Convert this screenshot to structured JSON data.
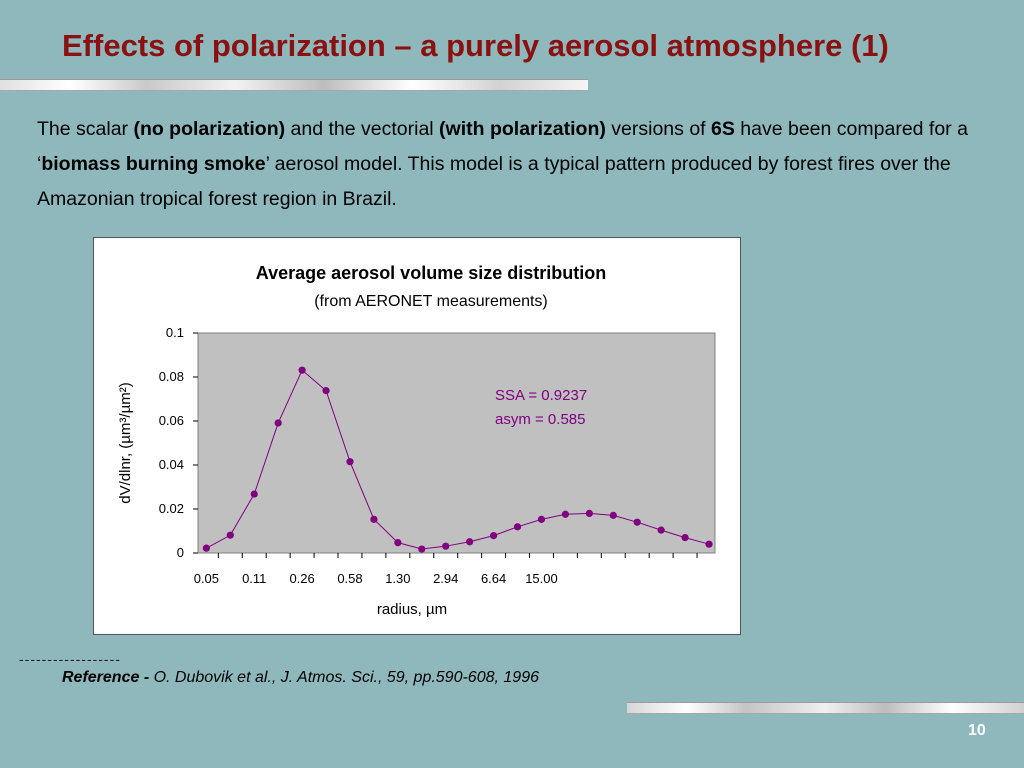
{
  "slide": {
    "title": "Effects of polarization – a purely aerosol atmosphere (1)",
    "page_number": "10"
  },
  "intro": {
    "t1": "The scalar ",
    "b1": "(no polarization)",
    "t2": " and the vectorial ",
    "b2": "(with polarization)",
    "t3": " versions of ",
    "b3": "6S",
    "t4": " have been compared for a ‘",
    "b4": "biomass burning smoke",
    "t5": "’ aerosol model. This model is a typical pattern produced by forest fires over the Amazonian tropical forest region in Brazil."
  },
  "reference": {
    "dashes": "------------------",
    "label": "Reference - ",
    "text": "O. Dubovik et al., J. Atmos. Sci., 59, pp.590-608, 1996"
  },
  "chart_data": {
    "type": "line",
    "title": "Average aerosol volume size distribution",
    "subtitle": "(from AERONET measurements)",
    "xlabel": "radius, µm",
    "ylabel": "dV/dlnr, (µm³/µm²)",
    "ylim": [
      0,
      0.1
    ],
    "y_ticks": [
      "0",
      "0.02",
      "0.04",
      "0.06",
      "0.08",
      "0.1"
    ],
    "x_tick_labels": [
      "0.05",
      "0.11",
      "0.26",
      "0.58",
      "1.30",
      "2.94",
      "6.64",
      "15.00"
    ],
    "grid": false,
    "plot_background": "#c0c0c0",
    "series_color": "#800080",
    "annotations": [
      "SSA = 0.9237",
      "asym = 0.585"
    ],
    "series": [
      {
        "x": [
          0.05,
          0.075,
          0.11,
          0.17,
          0.26,
          0.39,
          0.58,
          0.87,
          1.3,
          1.96,
          2.94,
          4.42,
          6.64,
          9.98,
          15.0,
          22.5,
          33.8,
          50.7,
          76.2,
          114.5,
          172.0,
          258.3
        ],
        "values": [
          0.0022,
          0.0081,
          0.0268,
          0.0591,
          0.0831,
          0.0738,
          0.0415,
          0.0153,
          0.0047,
          0.0018,
          0.0031,
          0.0051,
          0.0079,
          0.0119,
          0.0153,
          0.0176,
          0.018,
          0.0171,
          0.014,
          0.0104,
          0.007,
          0.004
        ]
      }
    ]
  }
}
